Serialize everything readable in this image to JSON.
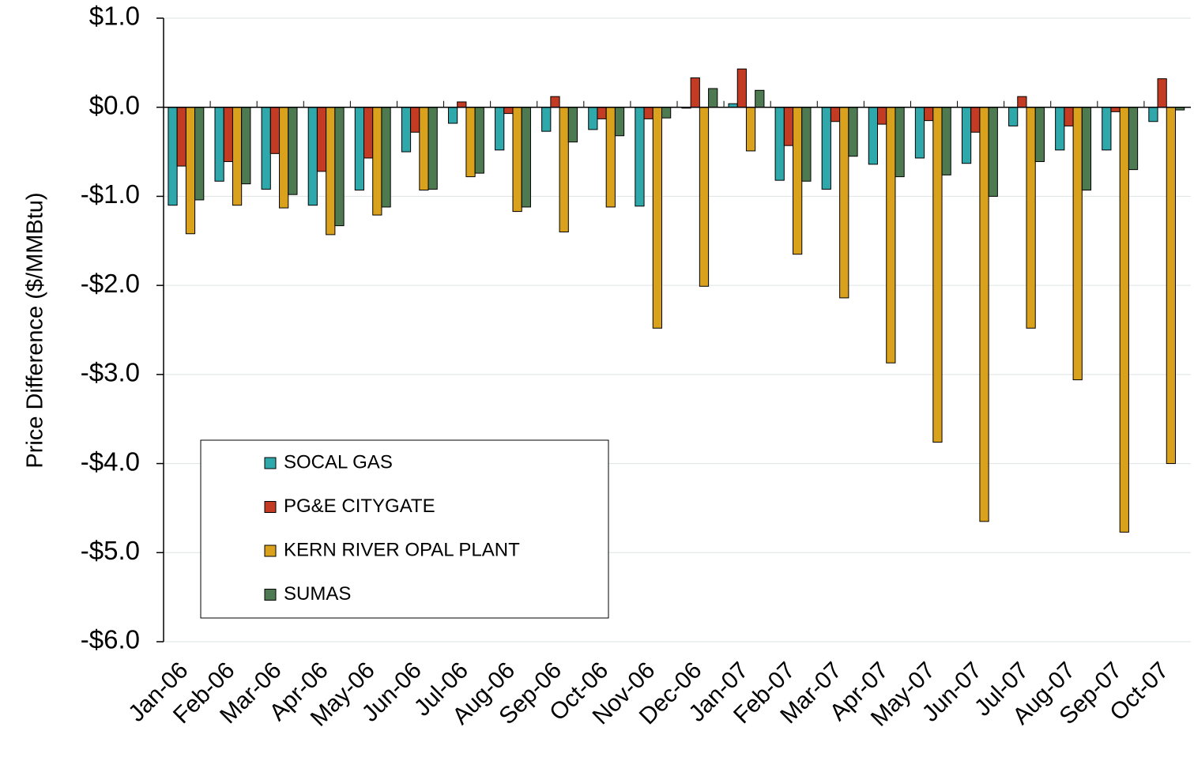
{
  "chart_data": {
    "type": "bar",
    "y_label": "Price Difference  ($/MMBtu)",
    "categories": [
      "Jan-06",
      "Feb-06",
      "Mar-06",
      "Apr-06",
      "May-06",
      "Jun-06",
      "Jul-06",
      "Aug-06",
      "Sep-06",
      "Oct-06",
      "Nov-06",
      "Dec-06",
      "Jan-07",
      "Feb-07",
      "Mar-07",
      "Apr-07",
      "May-07",
      "Jun-07",
      "Jul-07",
      "Aug-07",
      "Sep-07",
      "Oct-07"
    ],
    "series": [
      {
        "name": "SOCAL GAS",
        "color": "#2FA8AC",
        "values": [
          -1.1,
          -0.83,
          -0.92,
          -1.1,
          -0.93,
          -0.5,
          -0.18,
          -0.48,
          -0.27,
          -0.25,
          -1.11,
          -0.01,
          0.04,
          -0.82,
          -0.92,
          -0.64,
          -0.57,
          -0.63,
          -0.21,
          -0.48,
          -0.48,
          -0.16
        ]
      },
      {
        "name": "PG&E CITYGATE",
        "color": "#C23B22",
        "values": [
          -0.66,
          -0.61,
          -0.52,
          -0.72,
          -0.57,
          -0.28,
          0.06,
          -0.07,
          0.12,
          -0.13,
          -0.13,
          0.33,
          0.43,
          -0.43,
          -0.16,
          -0.19,
          -0.15,
          -0.28,
          0.12,
          -0.21,
          -0.05,
          0.32
        ]
      },
      {
        "name": "KERN RIVER OPAL PLANT",
        "color": "#D9A11C",
        "values": [
          -1.42,
          -1.1,
          -1.13,
          -1.43,
          -1.21,
          -0.93,
          -0.78,
          -1.17,
          -1.4,
          -1.12,
          -2.48,
          -2.01,
          -0.49,
          -1.65,
          -2.14,
          -2.87,
          -3.76,
          -4.65,
          -2.48,
          -3.06,
          -4.77,
          -4.0
        ]
      },
      {
        "name": "SUMAS",
        "color": "#4E7A52",
        "values": [
          -1.04,
          -0.86,
          -0.98,
          -1.33,
          -1.12,
          -0.92,
          -0.74,
          -1.12,
          -0.39,
          -0.32,
          -0.12,
          0.21,
          0.19,
          -0.83,
          -0.55,
          -0.78,
          -0.76,
          -1.0,
          -0.61,
          -0.93,
          -0.7,
          -0.03
        ]
      }
    ],
    "ylim": [
      -6,
      1
    ],
    "yticks": [
      {
        "value": 1,
        "label": "$1.0"
      },
      {
        "value": 0,
        "label": "$0.0"
      },
      {
        "value": -1,
        "label": "-$1.0"
      },
      {
        "value": -2,
        "label": "-$2.0"
      },
      {
        "value": -3,
        "label": "-$3.0"
      },
      {
        "value": -4,
        "label": "-$4.0"
      },
      {
        "value": -5,
        "label": "-$5.0"
      },
      {
        "value": -6,
        "label": "-$6.0"
      }
    ],
    "grid": true,
    "legend": "lower left"
  }
}
